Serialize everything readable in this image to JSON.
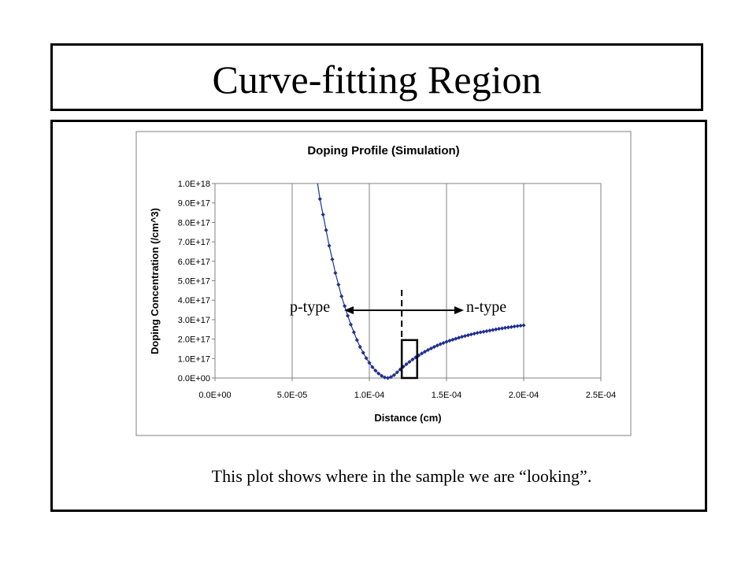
{
  "slide": {
    "title": "Curve-fitting Region",
    "caption": "This plot shows where in the sample we are “looking”."
  },
  "chart_data": {
    "type": "scatter",
    "title": "Doping Profile (Simulation)",
    "xlabel": "Distance (cm)",
    "ylabel": "Doping Concentration (/cm^3)",
    "xlim": [
      0,
      0.00025
    ],
    "ylim": [
      0,
      1e+18
    ],
    "x_ticks": [
      "0.0E+00",
      "5.0E-05",
      "1.0E-04",
      "1.5E-04",
      "2.0E-04",
      "2.5E-04"
    ],
    "y_ticks": [
      "0.0E+00",
      "1.0E+17",
      "2.0E+17",
      "3.0E+17",
      "4.0E+17",
      "5.0E+17",
      "6.0E+17",
      "7.0E+17",
      "8.0E+17",
      "9.0E+17",
      "1.0E+18"
    ],
    "grid": "vertical",
    "legend": "none",
    "series_color": "#1f2f8f",
    "series": [
      {
        "x": [
          6.8e-05,
          7e-05,
          7.2e-05,
          7.4e-05,
          7.6e-05,
          7.8e-05,
          8e-05,
          8.2e-05,
          8.4e-05,
          8.6e-05,
          8.8e-05,
          9e-05,
          9.2e-05,
          9.4e-05,
          9.6e-05,
          9.8e-05,
          0.0001,
          0.000102,
          0.000104,
          0.000106,
          0.000108,
          0.00011,
          0.000112,
          0.000114,
          0.000116,
          0.000118,
          0.00012,
          0.000122,
          0.000124,
          0.000126,
          0.000128,
          0.00013,
          0.000132,
          0.000134,
          0.000136,
          0.000138,
          0.00014,
          0.000142,
          0.000144,
          0.000146,
          0.000148,
          0.00015,
          0.000152,
          0.000154,
          0.000156,
          0.000158,
          0.00016,
          0.000162,
          0.000164,
          0.000166,
          0.000168,
          0.00017,
          0.000172,
          0.000174,
          0.000176,
          0.000178,
          0.00018,
          0.000182,
          0.000184,
          0.000186,
          0.000188,
          0.00019,
          0.000192,
          0.000194,
          0.000196,
          0.000198,
          0.0002
        ],
        "y": [
          9.2e+17,
          8.4e+17,
          7.6e+17,
          6.8e+17,
          6.1e+17,
          5.4e+17,
          4.8e+17,
          4.2e+17,
          3.7e+17,
          3.2e+17,
          2.75e+17,
          2.35e+17,
          1.95e+17,
          1.6e+17,
          1.3e+17,
          1.02e+17,
          7.8e+16,
          5.6e+16,
          3.8e+16,
          2.3e+16,
          1.1e+16,
          3000000000000000.0,
          0,
          5000000000000000.0,
          1.5e+16,
          2.9e+16,
          4.4e+16,
          5.8e+16,
          7.1e+16,
          8.3e+16,
          9.5e+16,
          1.06e+17,
          1.16e+17,
          1.26e+17,
          1.35e+17,
          1.44e+17,
          1.52e+17,
          1.6e+17,
          1.67e+17,
          1.74e+17,
          1.8e+17,
          1.86e+17,
          1.92e+17,
          1.97e+17,
          2.02e+17,
          2.07e+17,
          2.12e+17,
          2.16e+17,
          2.2e+17,
          2.24e+17,
          2.28e+17,
          2.32e+17,
          2.35e+17,
          2.38e+17,
          2.41e+17,
          2.44e+17,
          2.47e+17,
          2.5e+17,
          2.53e+17,
          2.55e+17,
          2.58e+17,
          2.6e+17,
          2.62e+17,
          2.65e+17,
          2.67e+17,
          2.69e+17,
          2.71e+17
        ]
      }
    ],
    "curve_start": {
      "x": 6.65e-05,
      "y": 1e+18
    },
    "junction_x": 0.000121,
    "fit_region": {
      "x": [
        0.000121,
        0.000131
      ],
      "y": [
        0,
        1.95e+17
      ]
    },
    "annotations": [
      {
        "text": "p-type",
        "arrow": "left"
      },
      {
        "text": "n-type",
        "arrow": "right"
      }
    ]
  }
}
